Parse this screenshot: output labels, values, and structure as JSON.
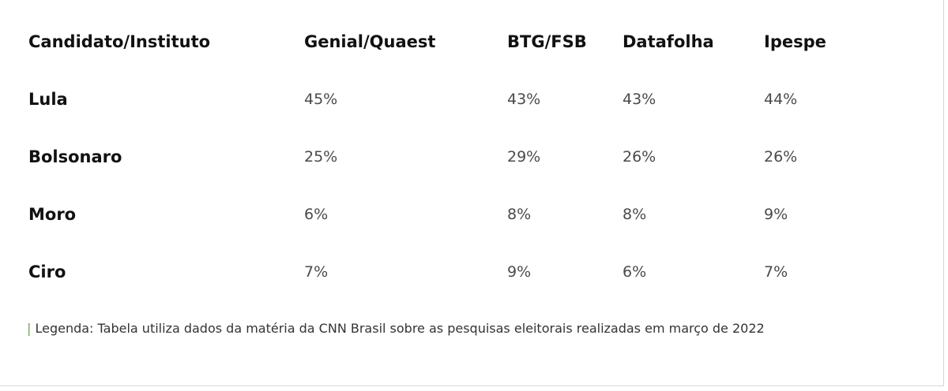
{
  "table": {
    "headers": [
      "Candidato/Instituto",
      "Genial/Quaest",
      "BTG/FSB",
      "Datafolha",
      "Ipespe"
    ],
    "rows": [
      {
        "candidate": "Lula",
        "values": [
          "45%",
          "43%",
          "43%",
          "44%"
        ]
      },
      {
        "candidate": "Bolsonaro",
        "values": [
          "25%",
          "29%",
          "26%",
          "26%"
        ]
      },
      {
        "candidate": "Moro",
        "values": [
          "6%",
          "8%",
          "8%",
          "9%"
        ]
      },
      {
        "candidate": "Ciro",
        "values": [
          "7%",
          "9%",
          "6%",
          "7%"
        ]
      }
    ]
  },
  "caption": {
    "bar": "|",
    "text": " Legenda: Tabela utiliza dados da matéria da CNN Brasil sobre as pesquisas eleitorais realizadas em março de 2022"
  },
  "colors": {
    "caption_bar": "#6aa84f"
  }
}
